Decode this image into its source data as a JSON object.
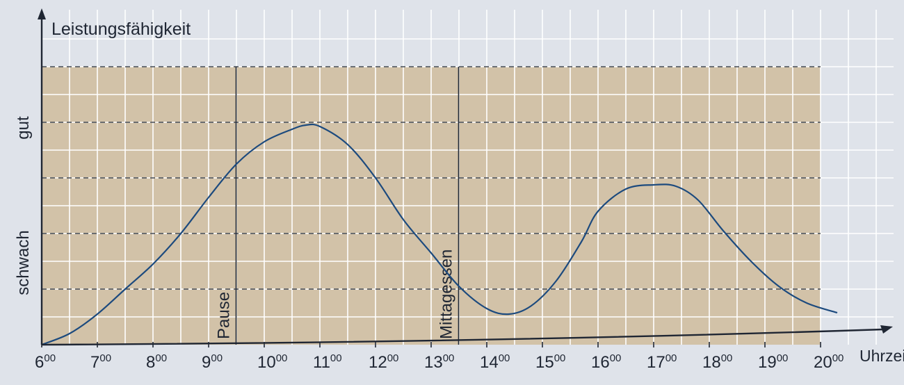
{
  "chart_data": {
    "type": "line",
    "ylabel": "Leistungsfähigkeit",
    "xlabel": "Uhrzeit",
    "y_levels": [
      "schwach",
      "gut"
    ],
    "xlim": [
      6,
      20
    ],
    "x_ticks": [
      {
        "hour": "6",
        "min": "00"
      },
      {
        "hour": "7",
        "min": "00"
      },
      {
        "hour": "8",
        "min": "00"
      },
      {
        "hour": "9",
        "min": "00"
      },
      {
        "hour": "10",
        "min": "00"
      },
      {
        "hour": "11",
        "min": "00"
      },
      {
        "hour": "12",
        "min": "00"
      },
      {
        "hour": "13",
        "min": "00"
      },
      {
        "hour": "14",
        "min": "00"
      },
      {
        "hour": "15",
        "min": "00"
      },
      {
        "hour": "16",
        "min": "00"
      },
      {
        "hour": "17",
        "min": "00"
      },
      {
        "hour": "18",
        "min": "00"
      },
      {
        "hour": "19",
        "min": "00"
      },
      {
        "hour": "20",
        "min": "00"
      }
    ],
    "series": [
      {
        "x": [
          6.0,
          6.5,
          7.0,
          7.5,
          8.0,
          8.5,
          9.0,
          9.5,
          10.0,
          10.5,
          10.75,
          11.0,
          11.5,
          12.0,
          12.5,
          13.0,
          13.5,
          14.0,
          14.4,
          14.8,
          15.25,
          15.7,
          16.0,
          16.5,
          17.0,
          17.4,
          17.8,
          18.25,
          18.75,
          19.25,
          19.75,
          20.3
        ],
        "y": [
          0.0,
          0.4,
          1.1,
          2.0,
          2.9,
          4.0,
          5.3,
          6.5,
          7.3,
          7.75,
          7.9,
          7.85,
          7.2,
          6.0,
          4.5,
          3.3,
          2.1,
          1.3,
          1.1,
          1.4,
          2.3,
          3.7,
          4.8,
          5.6,
          5.75,
          5.7,
          5.2,
          4.1,
          3.0,
          2.1,
          1.5,
          1.15
        ]
      }
    ],
    "ylim": [
      0,
      10
    ],
    "annotations": [
      {
        "label": "Pause",
        "x": 9.5
      },
      {
        "label": "Mittagessen",
        "x": 13.5
      }
    ],
    "colors": {
      "background": "#dfe3ea",
      "grid": "#ffffff",
      "band": "#cdb58f",
      "curve": "#1c4a7e",
      "axis": "#1f2633"
    },
    "grid": true
  }
}
